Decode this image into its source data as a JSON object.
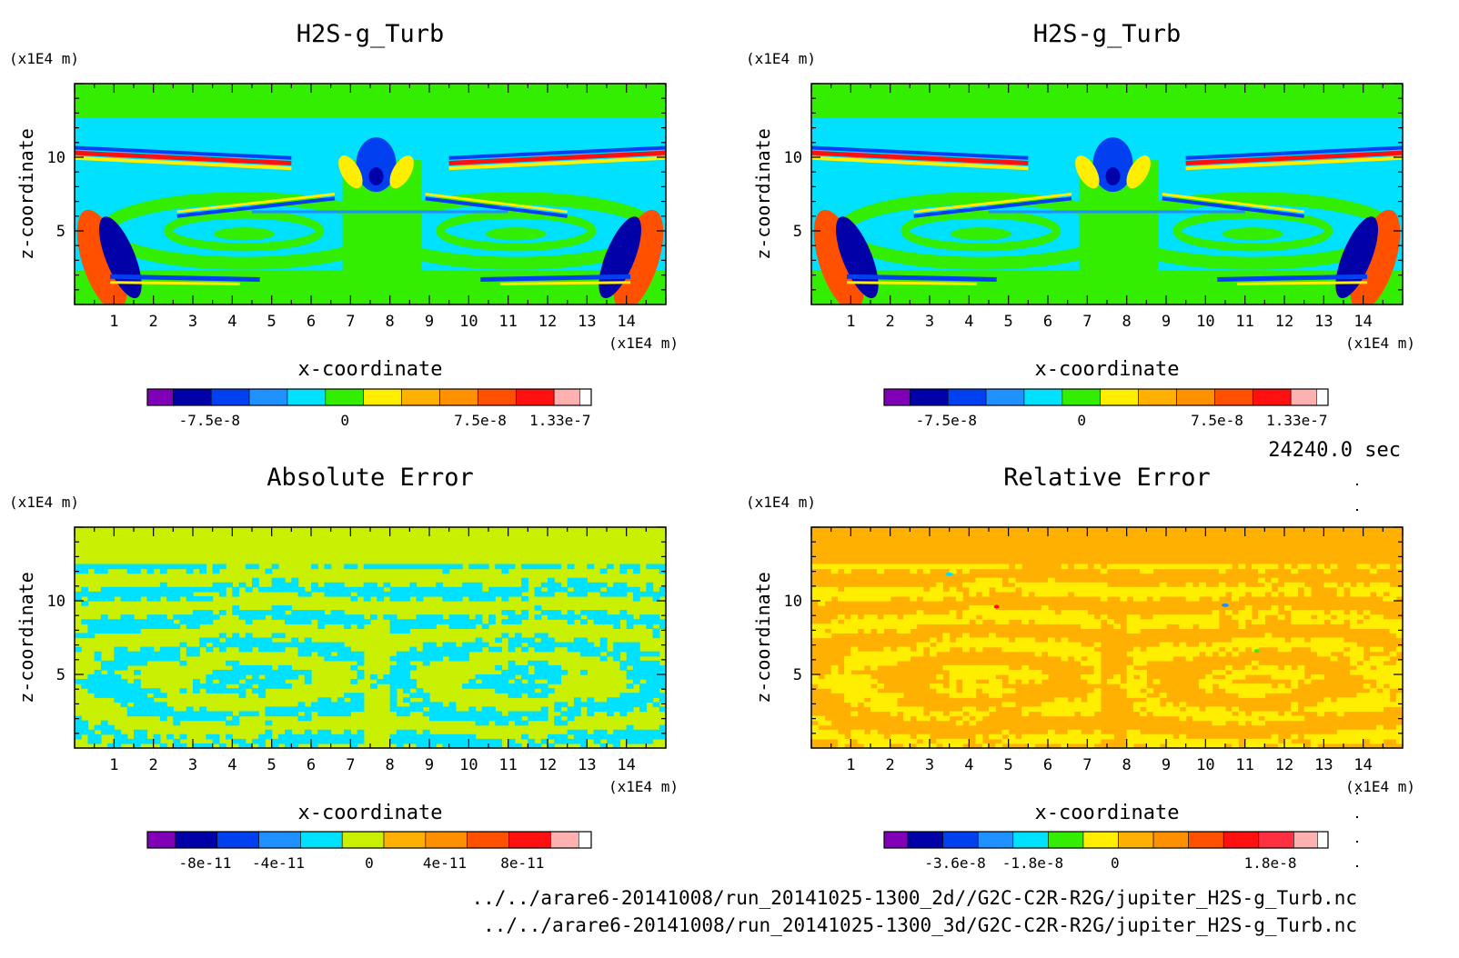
{
  "time_label": "24240.0 sec",
  "files": [
    "../../arare6-20141008/run_20141025-1300_2d//G2C-C2R-R2G/jupiter_H2S-g_Turb.nc",
    "../../arare6-20141008/run_20141025-1300_3d/G2C-C2R-R2G/jupiter_H2S-g_Turb.nc"
  ],
  "colors": {
    "purple": "#8000b8",
    "navy": "#0000a8",
    "blue": "#0040f0",
    "azure": "#1e90ff",
    "cyan": "#00e0ff",
    "green": "#33ee00",
    "yellowgreen": "#c8f000",
    "yellow": "#ffee00",
    "gold": "#ffb000",
    "orange": "#ff9000",
    "redorange": "#ff5000",
    "red": "#ff1010",
    "pink": "#ffb0b0"
  },
  "chart_data": [
    {
      "type": "heatmap",
      "title": "H2S-g_Turb",
      "xlabel": "x-coordinate",
      "ylabel": "z-coordinate",
      "x_unit": "(x1E4 m)",
      "z_unit": "(x1E4 m)",
      "xlim": [
        0,
        15
      ],
      "ylim": [
        0,
        15
      ],
      "x_ticks": [
        "1",
        "2",
        "3",
        "4",
        "5",
        "6",
        "7",
        "8",
        "9",
        "10",
        "11",
        "12",
        "13",
        "14"
      ],
      "y_ticks": [
        "5",
        "10"
      ],
      "background_color": "#33ee00",
      "colorbar_colors": [
        "#8000b8",
        "#0000a8",
        "#0040f0",
        "#1e90ff",
        "#00e0ff",
        "#33ee00",
        "#ffee00",
        "#ffb000",
        "#ff9000",
        "#ff5000",
        "#ff1010",
        "#ffb0b0"
      ],
      "colorbar_labels": [
        "-7.5e-8",
        "0",
        "7.5e-8",
        "1.33e-7"
      ]
    },
    {
      "type": "heatmap",
      "title": "H2S-g_Turb",
      "xlabel": "x-coordinate",
      "ylabel": "z-coordinate",
      "x_unit": "(x1E4 m)",
      "z_unit": "(x1E4 m)",
      "xlim": [
        0,
        15
      ],
      "ylim": [
        0,
        15
      ],
      "x_ticks": [
        "1",
        "2",
        "3",
        "4",
        "5",
        "6",
        "7",
        "8",
        "9",
        "10",
        "11",
        "12",
        "13",
        "14"
      ],
      "y_ticks": [
        "5",
        "10"
      ],
      "background_color": "#33ee00",
      "colorbar_colors": [
        "#8000b8",
        "#0000a8",
        "#0040f0",
        "#1e90ff",
        "#00e0ff",
        "#33ee00",
        "#ffee00",
        "#ffb000",
        "#ff9000",
        "#ff5000",
        "#ff1010",
        "#ffb0b0"
      ],
      "colorbar_labels": [
        "-7.5e-8",
        "0",
        "7.5e-8",
        "1.33e-7"
      ]
    },
    {
      "type": "heatmap",
      "title": "Absolute Error",
      "xlabel": "x-coordinate",
      "ylabel": "z-coordinate",
      "x_unit": "(x1E4 m)",
      "z_unit": "(x1E4 m)",
      "xlim": [
        0,
        15
      ],
      "ylim": [
        0,
        15
      ],
      "x_ticks": [
        "1",
        "2",
        "3",
        "4",
        "5",
        "6",
        "7",
        "8",
        "9",
        "10",
        "11",
        "12",
        "13",
        "14"
      ],
      "y_ticks": [
        "5",
        "10"
      ],
      "background_color": "#c8f000",
      "colorbar_colors": [
        "#8000b8",
        "#0000a8",
        "#0040f0",
        "#1e90ff",
        "#00e0ff",
        "#c8f000",
        "#ffb000",
        "#ff9000",
        "#ff5000",
        "#ff1010",
        "#ffb0b0"
      ],
      "colorbar_labels": [
        "-8e-11",
        "-4e-11",
        "0",
        "4e-11",
        "8e-11"
      ]
    },
    {
      "type": "heatmap",
      "title": "Relative Error",
      "xlabel": "x-coordinate",
      "ylabel": "z-coordinate",
      "x_unit": "(x1E4 m)",
      "z_unit": "(x1E4 m)",
      "xlim": [
        0,
        15
      ],
      "ylim": [
        0,
        15
      ],
      "x_ticks": [
        "1",
        "2",
        "3",
        "4",
        "5",
        "6",
        "7",
        "8",
        "9",
        "10",
        "11",
        "12",
        "13",
        "14"
      ],
      "y_ticks": [
        "5",
        "10"
      ],
      "background_color": "#ffb000",
      "colorbar_colors": [
        "#8000b8",
        "#0000a8",
        "#0040f0",
        "#1e90ff",
        "#00e0ff",
        "#33ee00",
        "#ffee00",
        "#ffb000",
        "#ff9000",
        "#ff5000",
        "#ff1010",
        "#ff3040",
        "#ffb0b0"
      ],
      "colorbar_labels": [
        "-3.6e-8",
        "-1.8e-8",
        "0",
        "1.8e-8"
      ]
    }
  ]
}
